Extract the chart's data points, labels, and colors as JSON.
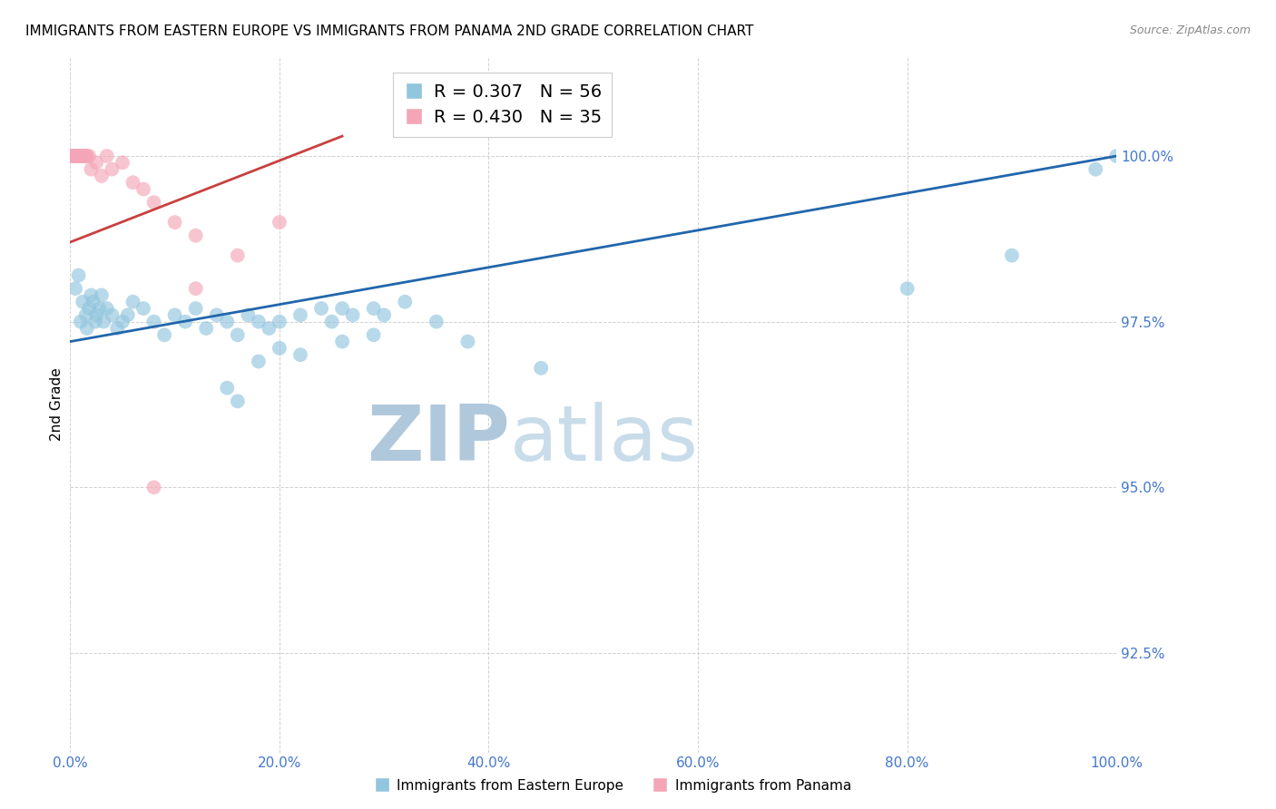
{
  "title": "IMMIGRANTS FROM EASTERN EUROPE VS IMMIGRANTS FROM PANAMA 2ND GRADE CORRELATION CHART",
  "source": "Source: ZipAtlas.com",
  "ylabel": "2nd Grade",
  "legend_blue_r": "R = 0.307",
  "legend_blue_n": "N = 56",
  "legend_pink_r": "R = 0.430",
  "legend_pink_n": "N = 35",
  "legend_blue_label": "Immigrants from Eastern Europe",
  "legend_pink_label": "Immigrants from Panama",
  "xmin": 0.0,
  "xmax": 100.0,
  "ymin": 91.0,
  "ymax": 101.5,
  "yticks": [
    92.5,
    95.0,
    97.5,
    100.0
  ],
  "xticks": [
    0.0,
    20.0,
    40.0,
    60.0,
    80.0,
    100.0
  ],
  "blue_color": "#92c5de",
  "pink_color": "#f4a6b8",
  "trend_blue_color": "#2166ac",
  "trend_pink_color": "#c94040",
  "watermark": "ZIPatlas",
  "watermark_zip_color": "#b8cfe0",
  "watermark_atlas_color": "#c8d8e8",
  "background_color": "#ffffff",
  "title_fontsize": 11,
  "axis_label_color": "#4477cc",
  "blue_x": [
    0.5,
    0.8,
    1.0,
    1.2,
    1.5,
    1.6,
    1.8,
    2.0,
    2.2,
    2.4,
    2.5,
    2.8,
    3.0,
    3.2,
    3.5,
    4.0,
    4.5,
    5.0,
    5.5,
    6.0,
    7.0,
    8.0,
    9.0,
    10.0,
    11.0,
    12.0,
    13.0,
    14.0,
    15.0,
    16.0,
    17.0,
    18.0,
    19.0,
    20.0,
    22.0,
    24.0,
    25.0,
    26.0,
    27.0,
    29.0,
    30.0,
    32.0,
    35.0,
    18.0,
    20.0,
    22.0,
    26.0,
    29.0,
    38.0,
    45.0,
    15.0,
    16.0,
    98.0,
    100.0,
    80.0,
    90.0
  ],
  "blue_y": [
    98.0,
    98.2,
    97.5,
    97.8,
    97.6,
    97.4,
    97.7,
    97.9,
    97.8,
    97.5,
    97.6,
    97.7,
    97.9,
    97.5,
    97.7,
    97.6,
    97.4,
    97.5,
    97.6,
    97.8,
    97.7,
    97.5,
    97.3,
    97.6,
    97.5,
    97.7,
    97.4,
    97.6,
    97.5,
    97.3,
    97.6,
    97.5,
    97.4,
    97.5,
    97.6,
    97.7,
    97.5,
    97.7,
    97.6,
    97.7,
    97.6,
    97.8,
    97.5,
    96.9,
    97.1,
    97.0,
    97.2,
    97.3,
    97.2,
    96.8,
    96.5,
    96.3,
    99.8,
    100.0,
    98.0,
    98.5
  ],
  "pink_x": [
    0.1,
    0.2,
    0.3,
    0.3,
    0.4,
    0.5,
    0.5,
    0.6,
    0.7,
    0.8,
    0.9,
    1.0,
    1.0,
    1.1,
    1.2,
    1.3,
    1.4,
    1.5,
    1.6,
    1.8,
    2.0,
    2.5,
    3.0,
    3.5,
    4.0,
    5.0,
    6.0,
    7.0,
    8.0,
    10.0,
    12.0,
    16.0,
    20.0,
    8.0,
    12.0
  ],
  "pink_y": [
    100.0,
    100.0,
    100.0,
    100.0,
    100.0,
    100.0,
    100.0,
    100.0,
    100.0,
    100.0,
    100.0,
    100.0,
    100.0,
    100.0,
    100.0,
    100.0,
    100.0,
    100.0,
    100.0,
    100.0,
    99.8,
    99.9,
    99.7,
    100.0,
    99.8,
    99.9,
    99.6,
    99.5,
    99.3,
    99.0,
    98.8,
    98.5,
    99.0,
    95.0,
    98.0
  ],
  "blue_trend_x0": 0.0,
  "blue_trend_y0": 97.2,
  "blue_trend_x1": 100.0,
  "blue_trend_y1": 100.0,
  "pink_trend_x0": 0.0,
  "pink_trend_y0": 98.7,
  "pink_trend_x1": 26.0,
  "pink_trend_y1": 100.3
}
